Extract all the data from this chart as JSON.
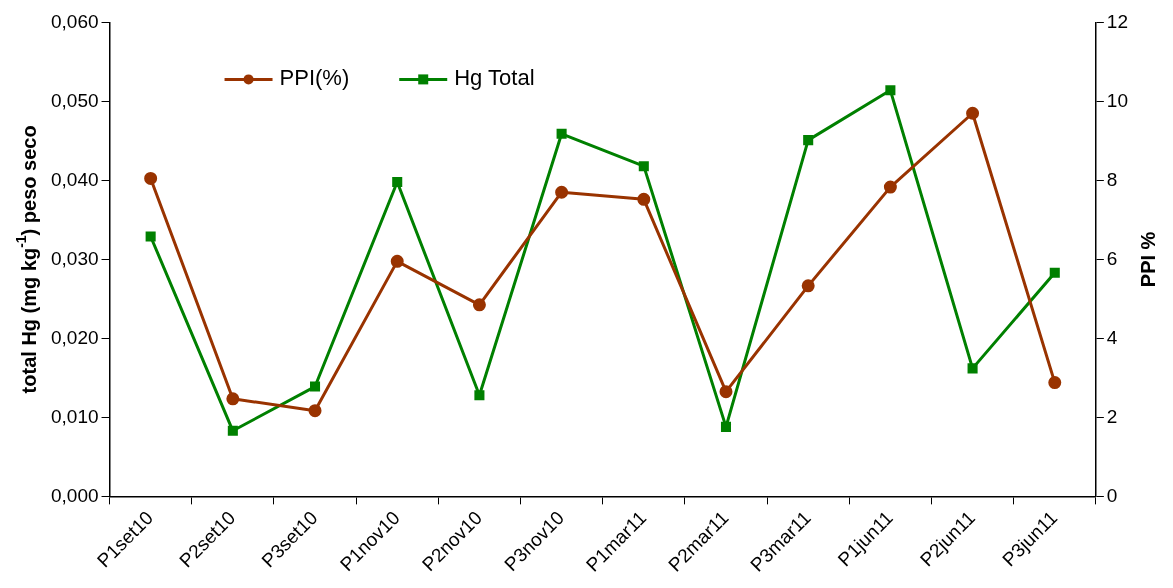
{
  "chart_data": {
    "type": "line",
    "categories": [
      "P1set10",
      "P2set10",
      "P3set10",
      "P1nov10",
      "P2nov10",
      "P3nov10",
      "P1mar11",
      "P2mar11",
      "P3mar11",
      "P1jun11",
      "P2jun11",
      "P3jun11"
    ],
    "series": [
      {
        "name": "PPI(%)",
        "color": "#993300",
        "axis": "y2",
        "marker": "circle",
        "values": [
          8.05,
          2.47,
          2.17,
          5.95,
          4.85,
          7.7,
          7.52,
          2.65,
          5.33,
          7.83,
          9.7,
          2.88
        ]
      },
      {
        "name": "Hg Total",
        "color": "#008000",
        "marker": "square",
        "values": [
          0.0329,
          0.0083,
          0.0139,
          0.0398,
          0.0128,
          0.0459,
          0.0418,
          0.0088,
          0.0451,
          0.0514,
          0.0162,
          0.0283
        ]
      }
    ],
    "ylabel": "total Hg (mg kg$^{-1}$) peso seco",
    "y2label": "PPI %",
    "ylim": [
      0,
      0.06
    ],
    "yticks": [
      {
        "value": 0,
        "label": "0,000"
      },
      {
        "value": 0.01,
        "label": "0,010"
      },
      {
        "value": 0.02,
        "label": "0,020"
      },
      {
        "value": 0.03,
        "label": "0,030"
      },
      {
        "value": 0.04,
        "label": "0,040"
      },
      {
        "value": 0.05,
        "label": "0,050"
      },
      {
        "value": 0.06,
        "label": "0,060"
      }
    ],
    "y2lim": [
      0,
      12
    ],
    "y2ticks": [
      0,
      2,
      4,
      6,
      8,
      10,
      12
    ],
    "grid": false,
    "legend": "top left",
    "line_style": "solid"
  }
}
